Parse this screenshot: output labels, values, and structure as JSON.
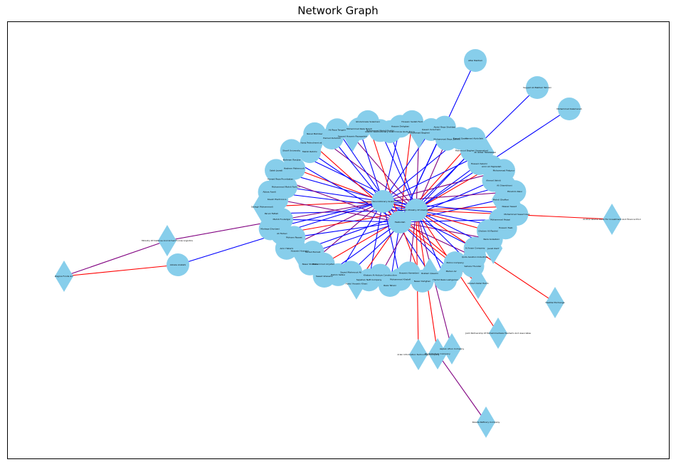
{
  "title": "Network Graph",
  "colors": {
    "node": "#87ceeb",
    "edge_blue": "#0000ff",
    "edge_red": "#ff0000",
    "edge_purple": "#800080",
    "frame": "#000000"
  },
  "legend": "none",
  "grid": false,
  "outer_nodes": [
    {
      "id": "zagros",
      "label": "Zagros Fonds Arc",
      "shape": "diamond"
    },
    {
      "id": "ministry",
      "label": "Ministry Of Defense And Armed Forces Logistics",
      "shape": "diamond"
    },
    {
      "id": "alireza",
      "label": "Alireza Arabshi",
      "shape": "circle"
    },
    {
      "id": "attar",
      "label": "Attar Baktiari",
      "shape": "circle"
    },
    {
      "id": "sayyed",
      "label": "Seyyed Ali Baktiari Tehrani",
      "shape": "circle"
    },
    {
      "id": "mohammad_k",
      "label": "Mohammad Kalameneh",
      "shape": "circle"
    },
    {
      "id": "alkhal",
      "label": "Al-Khal Islamic Bank For Investment And Finance P.S.C",
      "shape": "diamond"
    },
    {
      "id": "hashtal",
      "label": "Hashtal Exchange",
      "shape": "diamond"
    },
    {
      "id": "joint",
      "label": "Joint Partnership Of Mohammadreza Hashemi And Associates",
      "shape": "diamond"
    },
    {
      "id": "arian",
      "label": "Arian Information Technology Company",
      "shape": "diamond"
    },
    {
      "id": "aspian",
      "label": "Aspian Afrun Company",
      "shape": "diamond"
    },
    {
      "id": "royal",
      "label": "Royal Kishvar Company",
      "shape": "diamond"
    },
    {
      "id": "rawda",
      "label": "Rawda Refinery Company",
      "shape": "diamond"
    },
    {
      "id": "khaled",
      "label": "Khaled Abdel Halim",
      "shape": "diamond"
    }
  ],
  "hub_nodes": [
    {
      "id": "hub_a",
      "label": "Islamic Revolutionary Guard Corps"
    },
    {
      "id": "hub_b",
      "label": "Iranian Ministry Of Intelligence"
    },
    {
      "id": "hub_c",
      "label": "Hezbollah"
    }
  ],
  "ring_labels": [
    "Islamic Revolutionary Guard Corps Quds Force",
    "Hassan Dehghan",
    "Hossein Sadati Fard",
    "Mohammad Bagheri",
    "Qasem Soleimani",
    "Abdul Reza Shahlaei",
    "Mohammad Reza Zahedi",
    "Esmail Qaani",
    "Hamed Abdollahi",
    "Mahmoud Bagheri Kazemabad",
    "Ali Akbar Tabatabaei",
    "Hossein Salami",
    "Amir Ali Hajizadeh",
    "Mohammad Pakpour",
    "Ahmad Vahidi",
    "Ali Shamkhani",
    "Ebrahim Raisi",
    "Mehdi Ghaffari",
    "Nasser Saeed",
    "Mohammad Saeed Izadi",
    "Mohammad Hejazi",
    "Hossein Taeb",
    "Gholam Ali Rashid",
    "Reza Golestani",
    "Javad Zarif",
    "Al Ansar Company",
    "Qods Aviation Industries",
    "Sahara Thunder",
    "Pishro Company",
    "Mahan Air",
    "Hamid Reza Lashgarian",
    "Rostam Qasemi",
    "Naser Dehghan",
    "Hossein Hamedani",
    "Mohammad Khalafi",
    "Reza Tahani",
    "Khatam Al-Anbiya Construction",
    "Sepahan Naft Company",
    "Abdul Hossein Khani",
    "Seyed Mahmoud Ali",
    "Rahim Safavi",
    "Saeed Ghasemi",
    "Mohammad Ali Jafari",
    "Naser Shabani",
    "Farzad Esmaili",
    "Hossein Hosseini",
    "Amir Hatami",
    "Mohsen Rezaei",
    "Ali Fadavi",
    "Morteza Ghorbani",
    "Mehdi Fouladgar",
    "Parviz Fattah",
    "Sadegh Mohammadi",
    "Kaveh Electronics",
    "Abbas Asadi",
    "Mohammad Mahdi Farhadi",
    "Ahmad Reza Pourdastan",
    "Saleh Javadi",
    "Hashem Mahmoudi",
    "Bahman Ranjbar",
    "Sharif University",
    "Mehdi Rahimi",
    "Karaj Petrochemical",
    "Naval Mahdavi",
    "Hamed Ruhollah",
    "Ali Reza Tangsiri",
    "Sayyed Hossein Rezazadeh",
    "Mohammad Reza Naqdi",
    "Gholamreza Soleimani",
    "Mohammad Mehdi Khatibi"
  ]
}
